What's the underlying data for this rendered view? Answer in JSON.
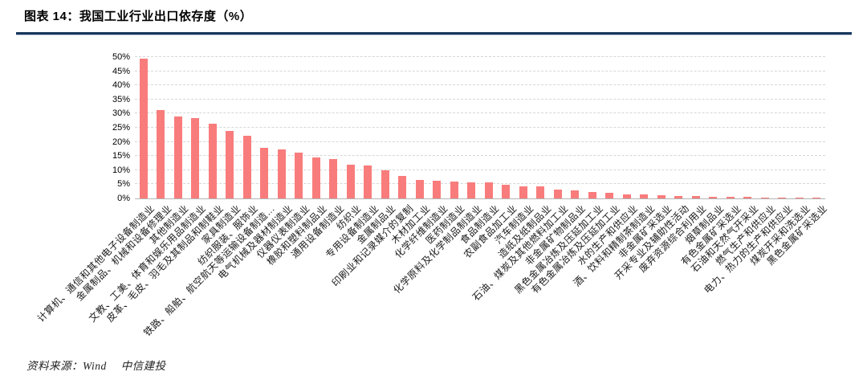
{
  "header": {
    "title": "图表 14：我国工业行业出口依存度（%）"
  },
  "source": {
    "label": "资料来源：Wind　 中信建投"
  },
  "colors": {
    "accent_rule": "#17375D",
    "bar": "#F97C7C",
    "gridline": "#D6D6D6",
    "axis_line": "#B3B3B3"
  },
  "chart_data": {
    "type": "bar",
    "title": "我国工业行业出口依存度（%）",
    "xlabel": "",
    "ylabel": "",
    "ylim": [
      0,
      50
    ],
    "ytick_step": 5,
    "ytick_labels": [
      "0%",
      "5%",
      "10%",
      "15%",
      "20%",
      "25%",
      "30%",
      "35%",
      "40%",
      "45%",
      "50%"
    ],
    "grid": "horizontal-dashed",
    "legend": "none",
    "bar_color": "#F97C7C",
    "categories": [
      "计算机、通信和其他电子设备制造业",
      "金属制品、机械和设备修理业",
      "其他制造业",
      "文教、工美、体育和娱乐用品制造业",
      "皮革、毛皮、羽毛及其制品和制鞋业",
      "家具制造业",
      "纺织服装、服饰业",
      "铁路、船舶、航空航天等运输设备制造…",
      "电气机械及器材制造业",
      "仪器仪表制造业",
      "橡胶和塑料制品业",
      "通用设备制造业",
      "纺织业",
      "专用设备制造业",
      "金属制品业",
      "印刷业和记录媒介的复制",
      "木材加工业",
      "化学纤维制造业",
      "医药制造业",
      "化学原料及化学制品制造业",
      "食品制造业",
      "农副食品加工业",
      "汽车制造业",
      "造纸及纸制品业",
      "石油、煤炭及其他燃料加工业",
      "非金属矿物制品业",
      "黑色金属冶炼及压延加工业",
      "有色金属冶炼及压延加工业",
      "水的生产和供应业",
      "酒、饮料和精制茶制造业",
      "非金属矿采选业",
      "开采专业及辅助性活动",
      "废弃资源综合利用业",
      "烟草制品业",
      "有色金属矿采选业",
      "石油和天然气开采业",
      "燃气生产和供应业",
      "电力、热力的生产和供应业",
      "煤炭开采和洗选业",
      "黑色金属矿采选业"
    ],
    "values": [
      49.3,
      31.2,
      29.0,
      28.4,
      26.4,
      23.8,
      22.3,
      17.8,
      17.2,
      16.1,
      14.4,
      14.0,
      11.8,
      11.6,
      10.0,
      8.1,
      6.4,
      6.2,
      5.9,
      5.7,
      5.6,
      4.7,
      4.4,
      4.2,
      3.1,
      2.8,
      2.3,
      1.9,
      1.5,
      1.3,
      1.0,
      0.9,
      0.8,
      0.7,
      0.6,
      0.5,
      0.4,
      0.3,
      0.25,
      0.2
    ]
  }
}
